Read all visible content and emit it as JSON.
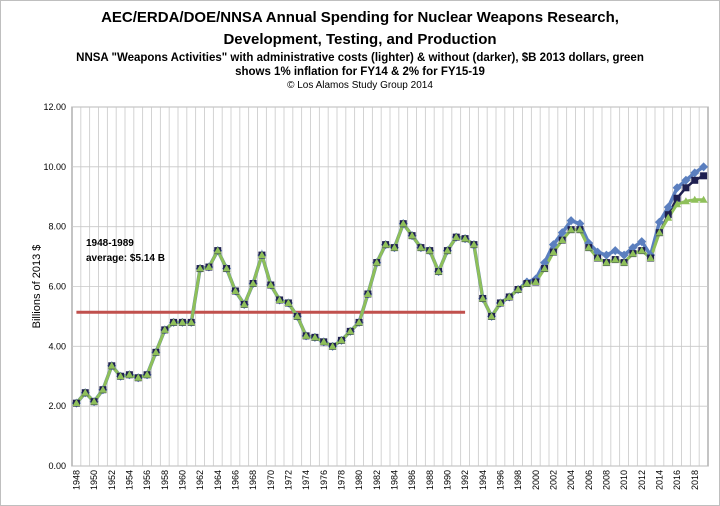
{
  "chart_data": {
    "type": "line",
    "title": "AEC/ERDA/DOE/NNSA Annual Spending for Nuclear Weapons Research, Development, Testing, and Production",
    "title_line1": "AEC/ERDA/DOE/NNSA Annual Spending for Nuclear Weapons Research,",
    "title_line2": "Development, Testing, and Production",
    "subtitle_line1": "NNSA \"Weapons Activities\" with administrative costs (lighter) & without (darker), $B 2013 dollars, green",
    "subtitle_line2": "shows 1% inflation for FY14 & 2% for FY15-19",
    "credit": "© Los Alamos Study Group  2014",
    "ylabel": "Billions of 2013 $",
    "xlabel": "",
    "ylim": [
      0,
      12
    ],
    "y_ticks": [
      "0.00",
      "2.00",
      "4.00",
      "6.00",
      "8.00",
      "10.00",
      "12.00"
    ],
    "x_ticks": [
      "1948",
      "1950",
      "1952",
      "1954",
      "1956",
      "1958",
      "1960",
      "1962",
      "1964",
      "1966",
      "1968",
      "1970",
      "1972",
      "1974",
      "1976",
      "1978",
      "1980",
      "1982",
      "1984",
      "1986",
      "1988",
      "1990",
      "1992",
      "1994",
      "1996",
      "1998",
      "2000",
      "2002",
      "2004",
      "2006",
      "2008",
      "2010",
      "2012",
      "2014",
      "2016",
      "2018"
    ],
    "grid": true,
    "x": [
      1948,
      1949,
      1950,
      1951,
      1952,
      1953,
      1954,
      1955,
      1956,
      1957,
      1958,
      1959,
      1960,
      1961,
      1962,
      1963,
      1964,
      1965,
      1966,
      1967,
      1968,
      1969,
      1970,
      1971,
      1972,
      1973,
      1974,
      1975,
      1976,
      1977,
      1978,
      1979,
      1980,
      1981,
      1982,
      1983,
      1984,
      1985,
      1986,
      1987,
      1988,
      1989,
      1990,
      1991,
      1992,
      1993,
      1994,
      1995,
      1996,
      1997,
      1998,
      1999,
      2000,
      2001,
      2002,
      2003,
      2004,
      2005,
      2006,
      2007,
      2008,
      2009,
      2010,
      2011,
      2012,
      2013,
      2014,
      2015,
      2016,
      2017,
      2018,
      2019
    ],
    "series": [
      {
        "name": "",
        "color": "#5b7fbf",
        "values": [
          2.1,
          2.45,
          2.15,
          2.55,
          3.35,
          3.0,
          3.05,
          2.95,
          3.05,
          3.8,
          4.55,
          4.8,
          4.8,
          4.8,
          6.6,
          6.65,
          7.2,
          6.6,
          5.85,
          5.4,
          6.1,
          7.05,
          6.05,
          5.55,
          5.45,
          5.0,
          4.35,
          4.3,
          4.15,
          4.0,
          4.2,
          4.5,
          4.8,
          5.75,
          6.8,
          7.4,
          7.3,
          8.1,
          7.7,
          7.3,
          7.2,
          6.5,
          7.2,
          7.65,
          7.6,
          7.4,
          5.6,
          5.0,
          5.45,
          5.65,
          5.9,
          6.15,
          6.25,
          6.8,
          7.4,
          7.8,
          8.2,
          8.1,
          7.45,
          7.15,
          7.05,
          7.2,
          7.05,
          7.3,
          7.5,
          7.05,
          8.15,
          8.65,
          9.3,
          9.55,
          9.8,
          10.0
        ]
      },
      {
        "name": "",
        "color": "#1f2050",
        "values": [
          2.1,
          2.45,
          2.15,
          2.55,
          3.35,
          3.0,
          3.05,
          2.95,
          3.05,
          3.8,
          4.55,
          4.8,
          4.8,
          4.8,
          6.6,
          6.65,
          7.2,
          6.6,
          5.85,
          5.4,
          6.1,
          7.05,
          6.05,
          5.55,
          5.45,
          5.0,
          4.35,
          4.3,
          4.15,
          4.0,
          4.2,
          4.5,
          4.8,
          5.75,
          6.8,
          7.4,
          7.3,
          8.1,
          7.7,
          7.3,
          7.2,
          6.5,
          7.2,
          7.65,
          7.6,
          7.4,
          5.6,
          5.0,
          5.45,
          5.65,
          5.9,
          6.1,
          6.15,
          6.6,
          7.15,
          7.55,
          7.9,
          7.9,
          7.3,
          6.95,
          6.8,
          6.9,
          6.8,
          7.1,
          7.2,
          6.95,
          7.8,
          8.4,
          8.95,
          9.3,
          9.55,
          9.7
        ]
      },
      {
        "name": "",
        "color": "#8fc05a",
        "values": [
          2.1,
          2.45,
          2.15,
          2.55,
          3.35,
          3.0,
          3.05,
          2.95,
          3.05,
          3.8,
          4.55,
          4.8,
          4.8,
          4.8,
          6.6,
          6.65,
          7.2,
          6.6,
          5.85,
          5.4,
          6.1,
          7.05,
          6.05,
          5.55,
          5.45,
          5.0,
          4.35,
          4.3,
          4.15,
          4.0,
          4.2,
          4.5,
          4.8,
          5.75,
          6.8,
          7.4,
          7.3,
          8.1,
          7.7,
          7.3,
          7.2,
          6.5,
          7.2,
          7.65,
          7.6,
          7.4,
          5.6,
          5.0,
          5.45,
          5.65,
          5.9,
          6.1,
          6.15,
          6.6,
          7.15,
          7.55,
          7.9,
          7.9,
          7.3,
          6.95,
          6.8,
          6.9,
          6.8,
          7.1,
          7.2,
          6.95,
          7.8,
          8.3,
          8.75,
          8.85,
          8.9,
          8.9
        ]
      }
    ],
    "average_line": {
      "color": "#c0504d",
      "value": 5.14,
      "x_start": 1948,
      "x_end": 1992
    },
    "annotation": {
      "line1": "1948-1989",
      "line2": "average: $5.14 B"
    }
  }
}
